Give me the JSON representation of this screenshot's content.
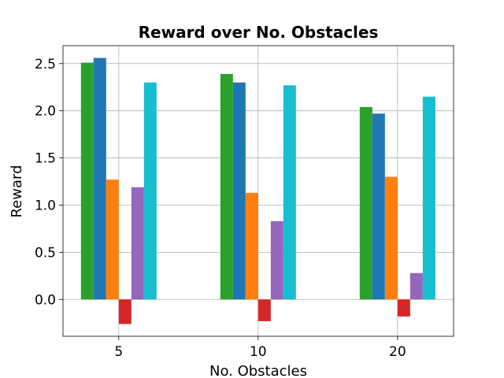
{
  "chart_data": {
    "type": "bar",
    "title": "Reward over No. Obstacles",
    "xlabel": "No. Obstacles",
    "ylabel": "Reward",
    "categories": [
      "5",
      "10",
      "20"
    ],
    "ylim": [
      -0.39,
      2.69
    ],
    "yticks": [
      "0.0",
      "0.5",
      "1.0",
      "1.5",
      "2.0",
      "2.5"
    ],
    "ytick_values": [
      0.0,
      0.5,
      1.0,
      1.5,
      2.0,
      2.5
    ],
    "grid": true,
    "series": [
      {
        "color": "#2ca02c",
        "values": [
          2.51,
          2.39,
          2.04
        ]
      },
      {
        "color": "#1f77b4",
        "values": [
          2.56,
          2.3,
          1.97
        ]
      },
      {
        "color": "#ff7f0e",
        "values": [
          1.27,
          1.13,
          1.3
        ]
      },
      {
        "color": "#d62728",
        "values": [
          -0.26,
          -0.23,
          -0.18
        ]
      },
      {
        "color": "#9467bd",
        "values": [
          1.19,
          0.83,
          0.28
        ]
      },
      {
        "color": "#17becf",
        "values": [
          2.3,
          2.27,
          2.15
        ]
      }
    ]
  }
}
